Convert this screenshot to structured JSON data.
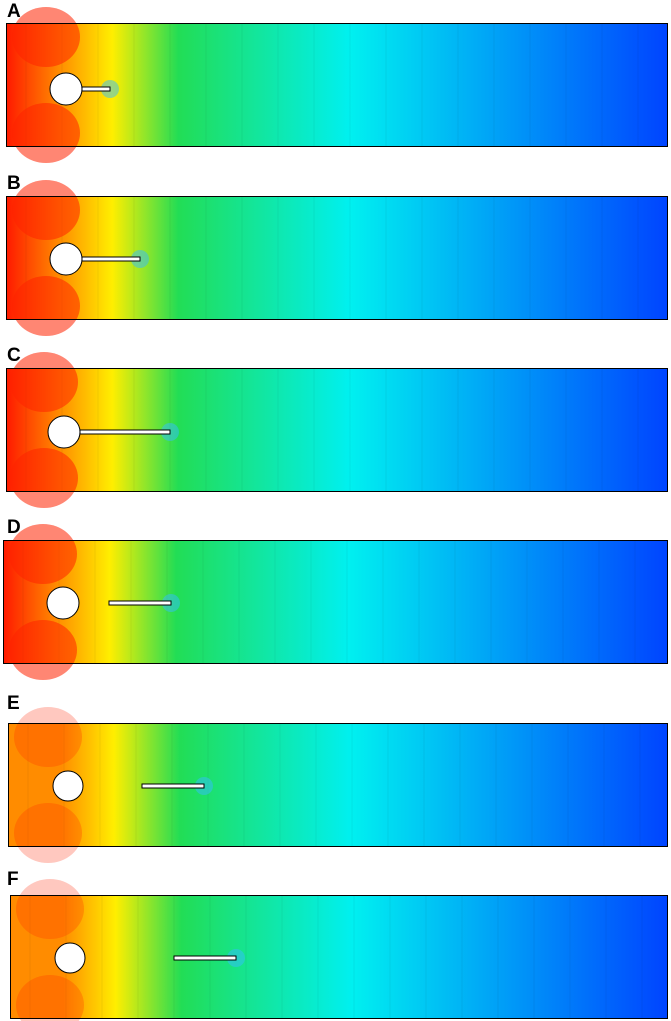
{
  "panels": [
    {
      "label": "A"
    },
    {
      "label": "B"
    },
    {
      "label": "C"
    },
    {
      "label": "D"
    },
    {
      "label": "E"
    },
    {
      "label": "F"
    }
  ],
  "colors": {
    "field_left": "#ff1a00",
    "field_orange": "#ff8c00",
    "field_yellow": "#ffee00",
    "field_green": "#22dd55",
    "field_cyan": "#00f0f0",
    "field_blue": "#0044ff",
    "obstacle_fill": "#ffffff",
    "outline": "#000000"
  }
}
